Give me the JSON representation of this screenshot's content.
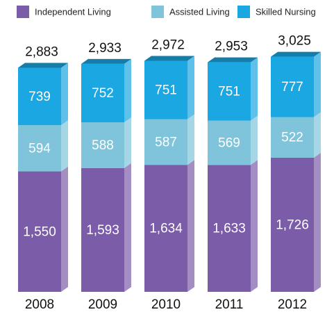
{
  "chart_data": {
    "type": "bar",
    "stacked": true,
    "categories": [
      "2008",
      "2009",
      "2010",
      "2011",
      "2012"
    ],
    "series": [
      {
        "name": "Independent Living",
        "color": "#7b5ca9",
        "values": [
          1550,
          1593,
          1634,
          1633,
          1726
        ],
        "value_labels": [
          "1,550",
          "1,593",
          "1,634",
          "1,633",
          "1,726"
        ]
      },
      {
        "name": "Assisted Living",
        "color": "#7fc4db",
        "values": [
          594,
          588,
          587,
          569,
          522
        ]
      },
      {
        "name": "Skilled Nursing",
        "color": "#1ba7e1",
        "values": [
          739,
          752,
          751,
          751,
          777
        ]
      }
    ],
    "totals": [
      2883,
      2933,
      2972,
      2953,
      3025
    ],
    "total_labels": [
      "2,883",
      "2,933",
      "2,972",
      "2,953",
      "3,025"
    ],
    "ylim": [
      0,
      3200
    ]
  }
}
